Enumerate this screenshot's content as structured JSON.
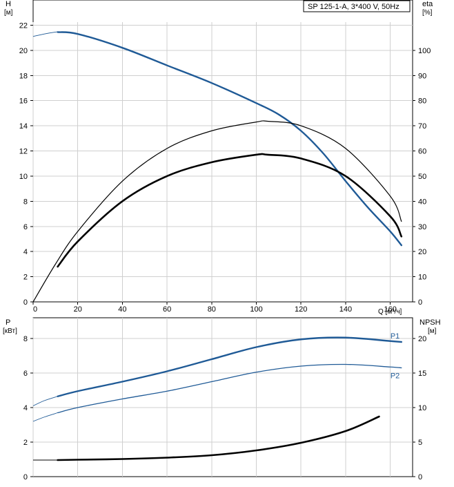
{
  "title": "SP 125-1-A, 3*400 V, 50Hz",
  "top_chart": {
    "left_axis_label": "H",
    "left_axis_unit": "[м]",
    "right_axis_label": "eta",
    "right_axis_unit": "[%]",
    "x_axis_label": "Q [м³/ч]"
  },
  "bottom_chart": {
    "left_axis_label": "P",
    "left_axis_unit": "[кВт]",
    "right_axis_label": "NPSH",
    "right_axis_unit": "[м]"
  },
  "colors": {
    "blue": "#1f5a96",
    "black": "#000000",
    "grid": "#cfcfcf"
  },
  "chart_data": [
    {
      "type": "line",
      "title": "SP 125-1-A, 3*400 V, 50Hz",
      "xlabel": "Q [м³/ч]",
      "ylabel": "H [м]",
      "y2label": "eta [%]",
      "xlim": [
        0,
        170
      ],
      "ylim": [
        0,
        24
      ],
      "y2lim": [
        0,
        120
      ],
      "grid": true,
      "x_ticks": [
        0,
        20,
        40,
        60,
        80,
        100,
        120,
        140,
        160
      ],
      "y_ticks": [
        0,
        2,
        4,
        6,
        8,
        10,
        12,
        14,
        16,
        18,
        20,
        22
      ],
      "y2_ticks": [
        0,
        10,
        20,
        30,
        40,
        50,
        60,
        70,
        80,
        90,
        100
      ],
      "series": [
        {
          "axis": "left",
          "color": "#1f5a96",
          "width": 2.4,
          "thin_prefix": true,
          "x": [
            0,
            5,
            10,
            11,
            20,
            40,
            60,
            80,
            100,
            110,
            120,
            130,
            140,
            150,
            160,
            165
          ],
          "y": [
            21.1,
            21.3,
            21.45,
            21.45,
            21.3,
            20.2,
            18.8,
            17.4,
            15.8,
            14.9,
            13.6,
            11.8,
            9.6,
            7.5,
            5.6,
            4.5
          ]
        },
        {
          "axis": "right",
          "color": "#000000",
          "width": 1.2,
          "thin_prefix": false,
          "x": [
            0,
            10,
            20,
            40,
            60,
            80,
            100,
            105,
            120,
            140,
            160,
            165
          ],
          "y": [
            0,
            15,
            28,
            48,
            61,
            68,
            71.5,
            71.8,
            70,
            61,
            42,
            32
          ]
        },
        {
          "axis": "right",
          "color": "#000000",
          "width": 2.6,
          "thin_prefix": false,
          "x": [
            11,
            20,
            40,
            60,
            80,
            100,
            105,
            120,
            140,
            160,
            165
          ],
          "y": [
            14,
            24,
            40,
            50,
            55.5,
            58.5,
            58.5,
            57,
            50,
            34,
            26
          ]
        }
      ]
    },
    {
      "type": "line",
      "xlabel": "",
      "ylabel": "P [кВт]",
      "y2label": "NPSH [м]",
      "xlim": [
        0,
        170
      ],
      "ylim": [
        0,
        9.2
      ],
      "y2lim": [
        0,
        23
      ],
      "grid": true,
      "x_ticks": [
        0,
        20,
        40,
        60,
        80,
        100,
        120,
        140,
        160
      ],
      "y_ticks": [
        0,
        2,
        4,
        6,
        8
      ],
      "y2_ticks": [
        0,
        5,
        10,
        15,
        20
      ],
      "series": [
        {
          "name": "P1",
          "axis": "left",
          "color": "#1f5a96",
          "width": 2.4,
          "thin_prefix": true,
          "x": [
            0,
            5,
            11,
            20,
            40,
            60,
            80,
            100,
            120,
            140,
            160,
            165
          ],
          "y": [
            4.1,
            4.4,
            4.65,
            4.95,
            5.5,
            6.1,
            6.8,
            7.5,
            7.95,
            8.05,
            7.85,
            7.8
          ]
        },
        {
          "name": "P2",
          "axis": "left",
          "color": "#1f5a96",
          "width": 1.3,
          "thin_prefix": true,
          "x": [
            0,
            5,
            11,
            20,
            40,
            60,
            80,
            100,
            120,
            140,
            160,
            165
          ],
          "y": [
            3.2,
            3.45,
            3.7,
            4.0,
            4.5,
            4.95,
            5.5,
            6.05,
            6.4,
            6.5,
            6.35,
            6.3
          ]
        },
        {
          "axis": "right",
          "color": "#000000",
          "width": 2.6,
          "thin_prefix": true,
          "x": [
            0,
            11,
            20,
            40,
            60,
            80,
            100,
            120,
            140,
            155
          ],
          "y": [
            2.4,
            2.4,
            2.45,
            2.55,
            2.75,
            3.1,
            3.8,
            4.9,
            6.6,
            8.7
          ]
        }
      ]
    }
  ]
}
